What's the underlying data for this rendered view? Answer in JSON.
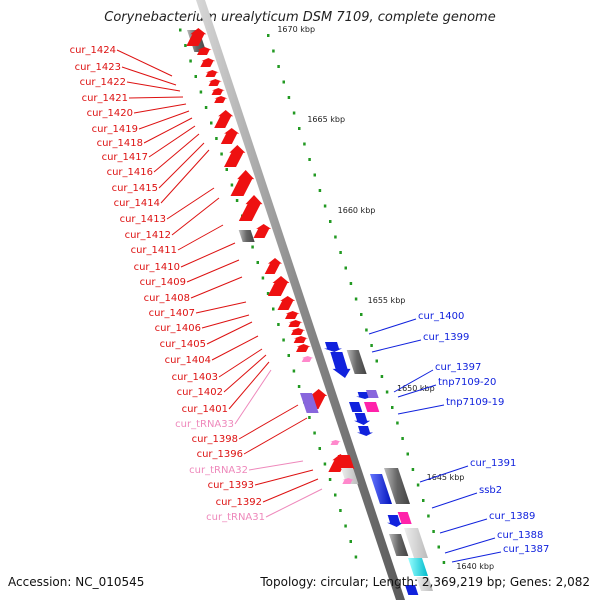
{
  "title": "Corynebacterium urealyticum DSM 7109, complete genome",
  "footer": {
    "accession": "Accession: NC_010545",
    "summary": "Topology: circular; Length: 2,369,219 bp; Genes: 2,082"
  },
  "colors": {
    "forward_cds": "#ee1111",
    "reverse_cds": "#1122dd",
    "trna": "#ff88cc",
    "pseudo": "#777777",
    "repeat": "#ff22aa",
    "mobile": "#00dddd",
    "other": "#8866dd",
    "tick": "#229922"
  },
  "scale_labels": [
    "1670 kbp",
    "1665 kbp",
    "1660 kbp",
    "1655 kbp",
    "1650 kbp",
    "1645 kbp",
    "1640 kbp"
  ],
  "left_labels": [
    {
      "text": "cur_1424",
      "type": "cds"
    },
    {
      "text": "cur_1423",
      "type": "cds"
    },
    {
      "text": "cur_1422",
      "type": "cds"
    },
    {
      "text": "cur_1421",
      "type": "cds"
    },
    {
      "text": "cur_1420",
      "type": "cds"
    },
    {
      "text": "cur_1419",
      "type": "cds"
    },
    {
      "text": "cur_1418",
      "type": "cds"
    },
    {
      "text": "cur_1417",
      "type": "cds"
    },
    {
      "text": "cur_1416",
      "type": "cds"
    },
    {
      "text": "cur_1415",
      "type": "cds"
    },
    {
      "text": "cur_1414",
      "type": "cds"
    },
    {
      "text": "cur_1413",
      "type": "cds"
    },
    {
      "text": "cur_1412",
      "type": "cds"
    },
    {
      "text": "cur_1411",
      "type": "cds"
    },
    {
      "text": "cur_1410",
      "type": "cds"
    },
    {
      "text": "cur_1409",
      "type": "cds"
    },
    {
      "text": "cur_1408",
      "type": "cds"
    },
    {
      "text": "cur_1407",
      "type": "cds"
    },
    {
      "text": "cur_1406",
      "type": "cds"
    },
    {
      "text": "cur_1405",
      "type": "cds"
    },
    {
      "text": "cur_1404",
      "type": "cds"
    },
    {
      "text": "cur_1403",
      "type": "cds"
    },
    {
      "text": "cur_1402",
      "type": "cds"
    },
    {
      "text": "cur_1401",
      "type": "cds"
    },
    {
      "text": "cur_tRNA33",
      "type": "trna"
    },
    {
      "text": "cur_1398",
      "type": "cds"
    },
    {
      "text": "cur_1396",
      "type": "cds"
    },
    {
      "text": "cur_tRNA32",
      "type": "trna"
    },
    {
      "text": "cur_1393",
      "type": "cds"
    },
    {
      "text": "cur_1392",
      "type": "cds"
    },
    {
      "text": "cur_tRNA31",
      "type": "trna"
    }
  ],
  "right_labels": [
    {
      "text": "cur_1400"
    },
    {
      "text": "cur_1399"
    },
    {
      "text": "cur_1397"
    },
    {
      "text": "tnp7109-20"
    },
    {
      "text": "tnp7109-19"
    },
    {
      "text": "cur_1391"
    },
    {
      "text": "ssb2"
    },
    {
      "text": "cur_1389"
    },
    {
      "text": "cur_1388"
    },
    {
      "text": "cur_1387"
    }
  ]
}
